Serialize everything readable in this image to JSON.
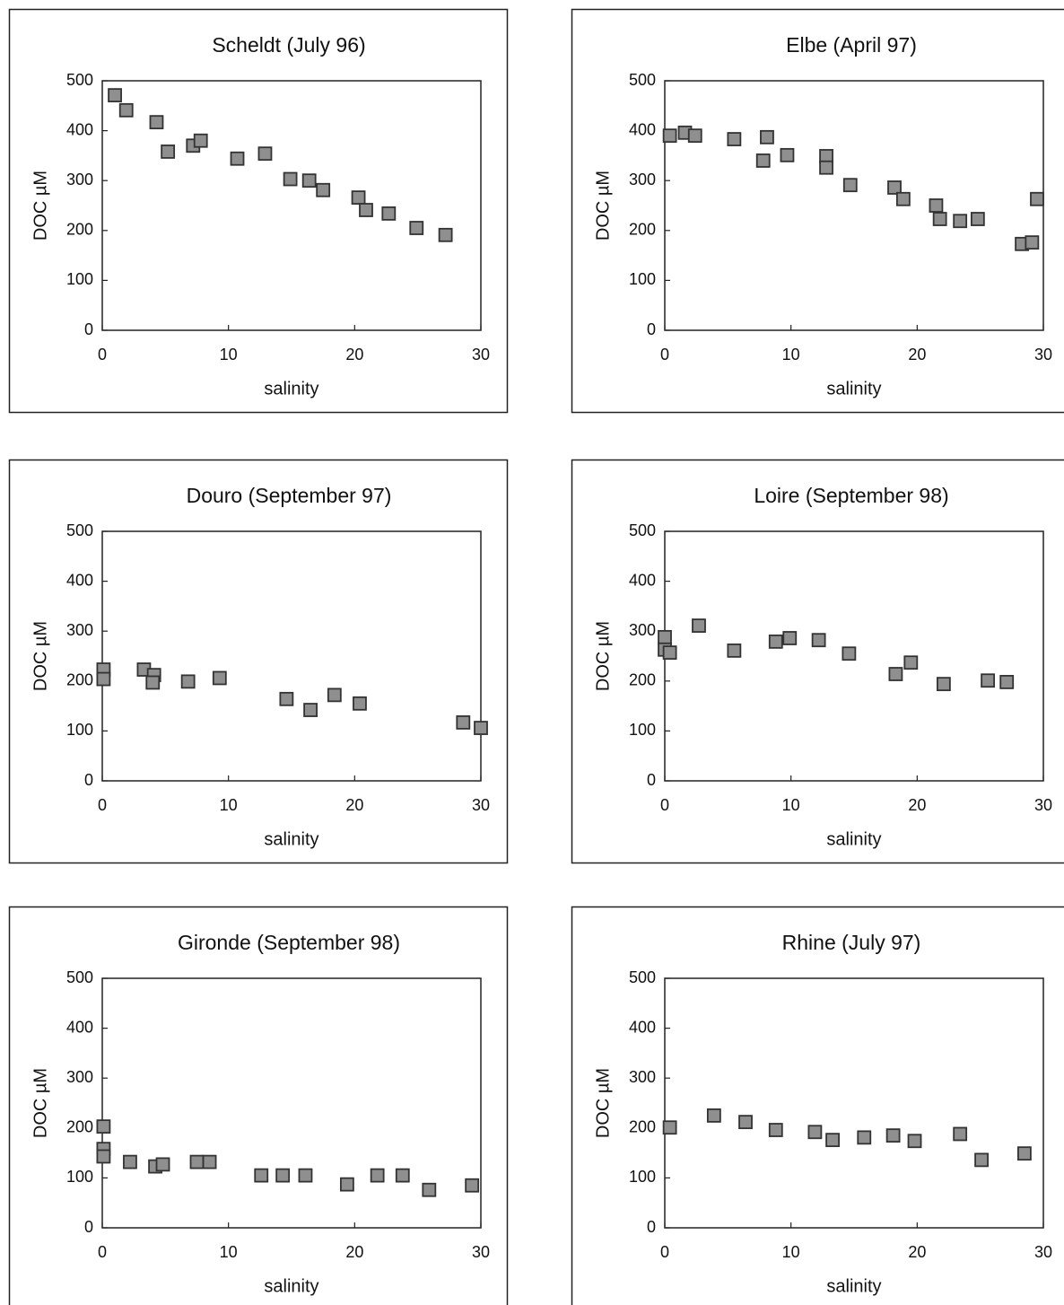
{
  "chart_data": [
    {
      "type": "scatter",
      "title": "Scheldt (July 96)",
      "xlabel": "salinity",
      "ylabel": "DOC µM",
      "xlim": [
        0,
        30
      ],
      "ylim": [
        0,
        500
      ],
      "xticks": [
        0,
        10,
        20,
        30
      ],
      "yticks": [
        0,
        100,
        200,
        300,
        400,
        500
      ],
      "color": "#8f8f8f",
      "x": [
        1.0,
        1.9,
        4.3,
        5.2,
        7.2,
        7.8,
        10.7,
        12.9,
        14.9,
        16.4,
        17.5,
        20.3,
        20.9,
        22.7,
        24.9,
        27.2
      ],
      "values": [
        471,
        441,
        417,
        358,
        370,
        380,
        344,
        354,
        303,
        300,
        281,
        266,
        241,
        234,
        205,
        191
      ]
    },
    {
      "type": "scatter",
      "title": "Elbe (April 97)",
      "xlabel": "salinity",
      "ylabel": "DOC µM",
      "xlim": [
        0,
        30
      ],
      "ylim": [
        0,
        500
      ],
      "xticks": [
        0,
        10,
        20,
        30
      ],
      "yticks": [
        0,
        100,
        200,
        300,
        400,
        500
      ],
      "color": "#8f8f8f",
      "x": [
        0.4,
        1.6,
        2.4,
        5.5,
        8.1,
        7.8,
        9.7,
        12.8,
        12.8,
        14.7,
        18.2,
        18.9,
        21.5,
        21.8,
        23.4,
        24.8,
        28.3,
        29.1,
        29.5
      ],
      "values": [
        390,
        396,
        390,
        383,
        387,
        340,
        351,
        349,
        326,
        291,
        286,
        263,
        250,
        223,
        219,
        223,
        173,
        176,
        263
      ]
    },
    {
      "type": "scatter",
      "title": "Douro (September 97)",
      "xlabel": "salinity",
      "ylabel": "DOC µM",
      "xlim": [
        0,
        30
      ],
      "ylim": [
        0,
        500
      ],
      "xticks": [
        0,
        10,
        20,
        30
      ],
      "yticks": [
        0,
        100,
        200,
        300,
        400,
        500
      ],
      "color": "#8f8f8f",
      "x": [
        0.1,
        0.1,
        3.3,
        4.1,
        4.0,
        6.8,
        9.3,
        14.6,
        16.5,
        18.4,
        20.4,
        28.6,
        30.0
      ],
      "values": [
        223,
        204,
        223,
        212,
        197,
        199,
        206,
        164,
        142,
        172,
        155,
        117,
        106
      ]
    },
    {
      "type": "scatter",
      "title": "Loire (September 98)",
      "xlabel": "salinity",
      "ylabel": "DOC µM",
      "xlim": [
        0,
        30
      ],
      "ylim": [
        0,
        500
      ],
      "xticks": [
        0,
        10,
        20,
        30
      ],
      "yticks": [
        0,
        100,
        200,
        300,
        400,
        500
      ],
      "color": "#8f8f8f",
      "x": [
        0,
        0,
        0.4,
        2.7,
        5.5,
        8.8,
        9.9,
        12.2,
        14.6,
        18.3,
        19.5,
        22.1,
        25.6,
        27.1
      ],
      "values": [
        288,
        263,
        257,
        311,
        261,
        279,
        286,
        282,
        255,
        214,
        237,
        194,
        201,
        198
      ]
    },
    {
      "type": "scatter",
      "title": "Gironde (September 98)",
      "xlabel": "salinity",
      "ylabel": "DOC µM",
      "xlim": [
        0,
        30
      ],
      "ylim": [
        0,
        500
      ],
      "xticks": [
        0,
        10,
        20,
        30
      ],
      "yticks": [
        0,
        100,
        200,
        300,
        400,
        500
      ],
      "color": "#8f8f8f",
      "x": [
        0.1,
        0.1,
        0.1,
        2.2,
        4.2,
        4.8,
        7.5,
        8.5,
        12.6,
        14.3,
        16.1,
        19.4,
        21.8,
        23.8,
        25.9,
        29.3
      ],
      "values": [
        203,
        158,
        143,
        132,
        123,
        127,
        132,
        132,
        105,
        105,
        105,
        87,
        105,
        105,
        76,
        85
      ]
    },
    {
      "type": "scatter",
      "title": "Rhine (July 97)",
      "xlabel": "salinity",
      "ylabel": "DOC µM",
      "xlim": [
        0,
        30
      ],
      "ylim": [
        0,
        500
      ],
      "xticks": [
        0,
        10,
        20,
        30
      ],
      "yticks": [
        0,
        100,
        200,
        300,
        400,
        500
      ],
      "color": "#8f8f8f",
      "x": [
        0.4,
        3.9,
        6.4,
        8.8,
        11.9,
        13.3,
        15.8,
        18.1,
        19.8,
        23.4,
        25.1,
        28.5
      ],
      "values": [
        201,
        225,
        212,
        196,
        192,
        176,
        181,
        185,
        174,
        188,
        136,
        149
      ]
    }
  ]
}
